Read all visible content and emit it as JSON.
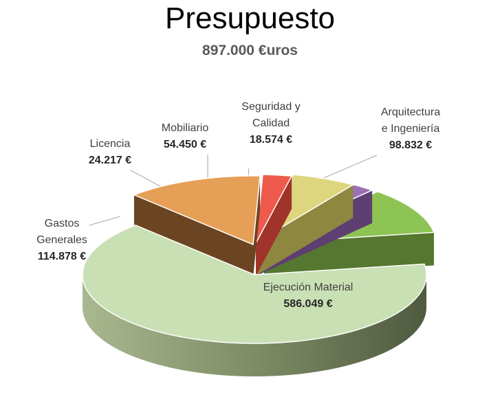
{
  "chart_data": {
    "type": "pie",
    "title": "Presupuesto",
    "subtitle": "897.000 €uros",
    "slices": [
      {
        "label": [
          "Ejecución Material"
        ],
        "value_text": "586.049 €",
        "value": 586049,
        "color": "#c9e0b4"
      },
      {
        "label": [
          "Gastos",
          "Generales"
        ],
        "value_text": "114.878 €",
        "value": 114878,
        "color": "#e59f56"
      },
      {
        "label": [
          "Licencia"
        ],
        "value_text": "24.217 €",
        "value": 24217,
        "color": "#ee5a4c"
      },
      {
        "label": [
          "Mobiliario"
        ],
        "value_text": "54.450 €",
        "value": 54450,
        "color": "#ddd67f"
      },
      {
        "label": [
          "Seguridad y",
          "Calidad"
        ],
        "value_text": "18.574 €",
        "value": 18574,
        "color": "#9c6fb5"
      },
      {
        "label": [
          "Arquitectura",
          "e Ingeniería"
        ],
        "value_text": "98.832 €",
        "value": 98832,
        "color": "#8ec453"
      }
    ]
  }
}
